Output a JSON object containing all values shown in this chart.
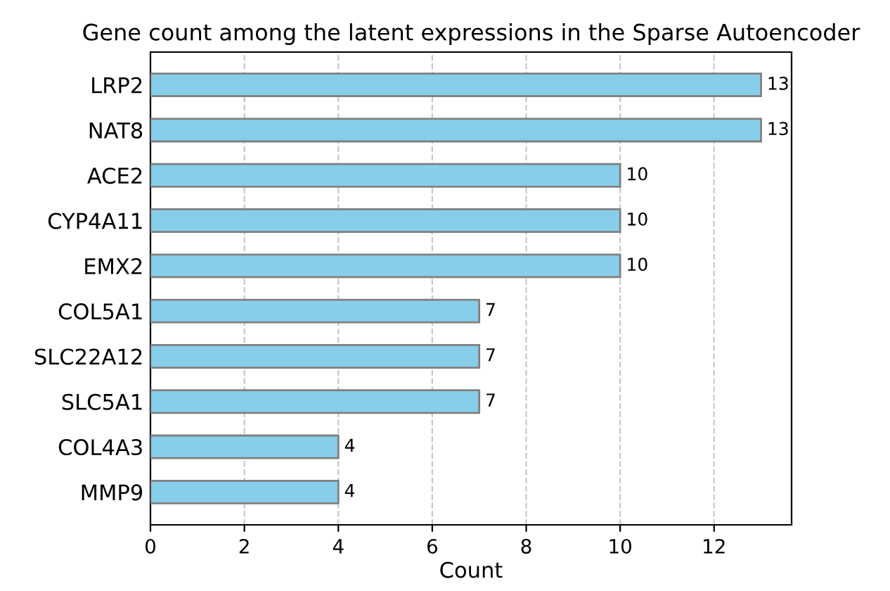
{
  "chart_data": {
    "type": "bar",
    "orientation": "horizontal",
    "title": "Gene count among the latent expressions in the Sparse Autoencoder",
    "xlabel": "Count",
    "categories": [
      "LRP2",
      "NAT8",
      "ACE2",
      "CYP4A11",
      "EMX2",
      "COL5A1",
      "SLC22A12",
      "SLC5A1",
      "COL4A3",
      "MMP9"
    ],
    "values": [
      13,
      13,
      10,
      10,
      10,
      7,
      7,
      7,
      4,
      4
    ],
    "color": "#87ceeb",
    "data_labels": true,
    "xlim": [
      0,
      13.65
    ],
    "xticks": [
      0,
      2,
      4,
      6,
      8,
      10,
      12
    ],
    "grid": "x",
    "line_style": "dashed"
  }
}
